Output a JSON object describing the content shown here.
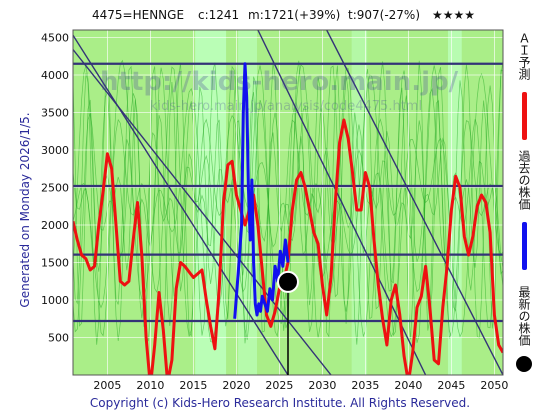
{
  "header": {
    "code": "4475=HENNGE",
    "current": "c:1241",
    "max": "m:1721(+39%)",
    "target": "t:907(-27%)",
    "rating": "★★★★"
  },
  "side_label": "Generated on Monday 2026/1/5.",
  "footer": "Copyright (c) Kids-Hero Research Institute. All Rights Reserved.",
  "watermark": {
    "line1": "http://kids-hero.main.jp/",
    "line2": "kids-hero.main.jp/analysis/code4475.html"
  },
  "legend": {
    "ai_label": "ＡＩ予測",
    "past_label": "過去の株価",
    "latest_label": "最新の株価"
  },
  "colors": {
    "ai_forecast": "#ee1111",
    "past_price": "#1111ee",
    "latest_marker": "#000000",
    "background_band": "#aaee88",
    "highlight_band": "#bbffbb",
    "trend_lines": "#333377",
    "grid": "#ffffff",
    "axis_text": "#111111"
  },
  "chart_data": {
    "type": "line",
    "xlim": [
      2001,
      2051
    ],
    "ylim": [
      0,
      4600
    ],
    "x_ticks": [
      2005,
      2010,
      2015,
      2020,
      2025,
      2030,
      2035,
      2040,
      2045,
      2050
    ],
    "y_ticks": [
      500,
      1000,
      1500,
      2000,
      2500,
      3000,
      3500,
      4000,
      4500
    ],
    "horizontal_levels": [
      4150,
      2520,
      1605,
      720
    ],
    "trend_lines": [
      {
        "from": [
          2001,
          4530
        ],
        "to": [
          2026,
          0
        ]
      },
      {
        "from": [
          2001,
          4340
        ],
        "to": [
          2031,
          0
        ]
      },
      {
        "from": [
          2022.5,
          4600
        ],
        "to": [
          2042,
          0
        ]
      },
      {
        "from": [
          2030.5,
          4600
        ],
        "to": [
          2051,
          0
        ]
      }
    ],
    "series": [
      {
        "name": "ＡＩ予測",
        "points": [
          [
            2001,
            2050
          ],
          [
            2001.5,
            1800
          ],
          [
            2002,
            1600
          ],
          [
            2002.5,
            1550
          ],
          [
            2003,
            1400
          ],
          [
            2003.5,
            1450
          ],
          [
            2004,
            2000
          ],
          [
            2004.5,
            2450
          ],
          [
            2005,
            2950
          ],
          [
            2005.5,
            2750
          ],
          [
            2006,
            2000
          ],
          [
            2006.5,
            1250
          ],
          [
            2007,
            1200
          ],
          [
            2007.5,
            1250
          ],
          [
            2008,
            1800
          ],
          [
            2008.5,
            2300
          ],
          [
            2009,
            1600
          ],
          [
            2009.5,
            500
          ],
          [
            2010,
            -150
          ],
          [
            2010.5,
            400
          ],
          [
            2011,
            1100
          ],
          [
            2011.5,
            600
          ],
          [
            2012,
            -100
          ],
          [
            2012.5,
            200
          ],
          [
            2013,
            1150
          ],
          [
            2013.5,
            1500
          ],
          [
            2014,
            1450
          ],
          [
            2015,
            1300
          ],
          [
            2016,
            1400
          ],
          [
            2016.5,
            1000
          ],
          [
            2017,
            650
          ],
          [
            2017.5,
            350
          ],
          [
            2018,
            1150
          ],
          [
            2018.5,
            2300
          ],
          [
            2019,
            2800
          ],
          [
            2019.5,
            2850
          ],
          [
            2020,
            2400
          ],
          [
            2021,
            2000
          ],
          [
            2021.5,
            2200
          ],
          [
            2022,
            2400
          ],
          [
            2022.5,
            2000
          ],
          [
            2023,
            1400
          ],
          [
            2023.5,
            800
          ],
          [
            2024,
            650
          ],
          [
            2024.5,
            850
          ],
          [
            2025,
            1150
          ],
          [
            2025.5,
            1250
          ],
          [
            2026,
            1500
          ],
          [
            2026.5,
            2200
          ],
          [
            2027,
            2600
          ],
          [
            2027.5,
            2700
          ],
          [
            2028,
            2500
          ],
          [
            2028.5,
            2200
          ],
          [
            2029,
            1900
          ],
          [
            2029.5,
            1750
          ],
          [
            2030,
            1200
          ],
          [
            2030.5,
            800
          ],
          [
            2031,
            1300
          ],
          [
            2031.5,
            2300
          ],
          [
            2032,
            3100
          ],
          [
            2032.5,
            3400
          ],
          [
            2033,
            3150
          ],
          [
            2033.5,
            2700
          ],
          [
            2034,
            2200
          ],
          [
            2034.5,
            2200
          ],
          [
            2035,
            2700
          ],
          [
            2035.5,
            2500
          ],
          [
            2036,
            1800
          ],
          [
            2036.5,
            1200
          ],
          [
            2037,
            750
          ],
          [
            2037.5,
            400
          ],
          [
            2038,
            1000
          ],
          [
            2038.5,
            1200
          ],
          [
            2039,
            800
          ],
          [
            2039.5,
            250
          ],
          [
            2040,
            -100
          ],
          [
            2040.5,
            300
          ],
          [
            2041,
            900
          ],
          [
            2041.5,
            1050
          ],
          [
            2042,
            1450
          ],
          [
            2042.5,
            900
          ],
          [
            2043,
            200
          ],
          [
            2043.5,
            150
          ],
          [
            2044,
            900
          ],
          [
            2044.5,
            1450
          ],
          [
            2045,
            2200
          ],
          [
            2045.5,
            2650
          ],
          [
            2046,
            2500
          ],
          [
            2046.5,
            1850
          ],
          [
            2047,
            1600
          ],
          [
            2047.5,
            1850
          ],
          [
            2048,
            2250
          ],
          [
            2048.5,
            2400
          ],
          [
            2049,
            2300
          ],
          [
            2049.5,
            1900
          ],
          [
            2050,
            800
          ],
          [
            2050.5,
            400
          ],
          [
            2051,
            300
          ]
        ]
      },
      {
        "name": "過去の株価",
        "points": [
          [
            2019.8,
            750
          ],
          [
            2020,
            1050
          ],
          [
            2020.3,
            1500
          ],
          [
            2020.6,
            2000
          ],
          [
            2020.8,
            3500
          ],
          [
            2021,
            4150
          ],
          [
            2021.2,
            3700
          ],
          [
            2021.4,
            2500
          ],
          [
            2021.6,
            1800
          ],
          [
            2021.8,
            2600
          ],
          [
            2022,
            1500
          ],
          [
            2022.2,
            950
          ],
          [
            2022.4,
            800
          ],
          [
            2022.6,
            950
          ],
          [
            2022.8,
            850
          ],
          [
            2023,
            1050
          ],
          [
            2023.3,
            950
          ],
          [
            2023.6,
            850
          ],
          [
            2023.9,
            1150
          ],
          [
            2024.2,
            1000
          ],
          [
            2024.5,
            1450
          ],
          [
            2024.8,
            1250
          ],
          [
            2025.1,
            1650
          ],
          [
            2025.4,
            1450
          ],
          [
            2025.7,
            1800
          ],
          [
            2026,
            1500
          ]
        ]
      }
    ],
    "latest": {
      "x": 2026,
      "y": 1241
    }
  }
}
